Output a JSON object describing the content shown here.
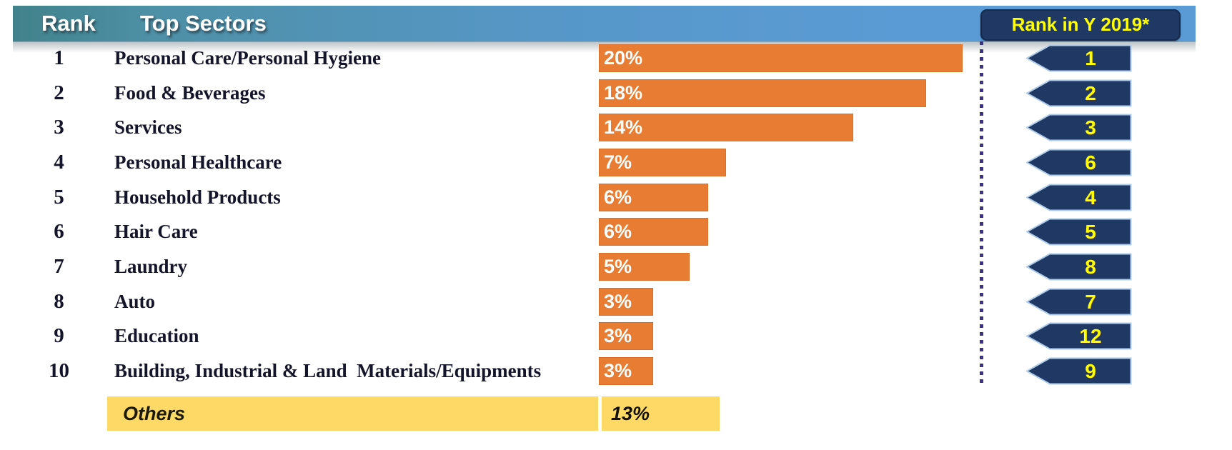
{
  "header": {
    "rank_label": "Rank",
    "title": "Top Sectors",
    "right_label": "Rank in Y 2019*"
  },
  "colors": {
    "bar_orange": "#E87C33",
    "badge_navy": "#1F3864",
    "badge_outline": "#AFCDEA",
    "badge_number_yellow": "#FFFF00",
    "others_yellow": "#FFD966",
    "header_gradient_left": "#41828B",
    "header_gradient_right": "#5B9BD5",
    "dotted_line": "#3D3383"
  },
  "rows": [
    {
      "rank": "1",
      "name": "Personal Care/Personal Hygiene",
      "pct": 20,
      "pct_label": "20%",
      "rank_2019": "1"
    },
    {
      "rank": "2",
      "name": "Food & Beverages",
      "pct": 18,
      "pct_label": "18%",
      "rank_2019": "2"
    },
    {
      "rank": "3",
      "name": "Services",
      "pct": 14,
      "pct_label": "14%",
      "rank_2019": "3"
    },
    {
      "rank": "4",
      "name": "Personal Healthcare",
      "pct": 7,
      "pct_label": "7%",
      "rank_2019": "6"
    },
    {
      "rank": "5",
      "name": "Household Products",
      "pct": 6,
      "pct_label": "6%",
      "rank_2019": "4"
    },
    {
      "rank": "6",
      "name": "Hair Care",
      "pct": 6,
      "pct_label": "6%",
      "rank_2019": "5"
    },
    {
      "rank": "7",
      "name": "Laundry",
      "pct": 5,
      "pct_label": "5%",
      "rank_2019": "8"
    },
    {
      "rank": "8",
      "name": "Auto",
      "pct": 3,
      "pct_label": "3%",
      "rank_2019": "7"
    },
    {
      "rank": "9",
      "name": "Education",
      "pct": 3,
      "pct_label": "3%",
      "rank_2019": "12"
    },
    {
      "rank": "10",
      "name": "Building, Industrial & Land  Materials/Equipments",
      "pct": 3,
      "pct_label": "3%",
      "rank_2019": "9"
    }
  ],
  "others_row": {
    "label": "Others",
    "pct": 13,
    "pct_label": "13%"
  },
  "chart_data": {
    "type": "bar",
    "orientation": "horizontal",
    "title": "Top Sectors",
    "unit": "percent share",
    "categories": [
      "Personal Care/Personal Hygiene",
      "Food & Beverages",
      "Services",
      "Personal Healthcare",
      "Household Products",
      "Hair Care",
      "Laundry",
      "Auto",
      "Education",
      "Building, Industrial & Land Materials/Equipments"
    ],
    "values": [
      20,
      18,
      14,
      7,
      6,
      6,
      5,
      3,
      3,
      3
    ],
    "series": [
      {
        "name": "Current rank",
        "values": [
          1,
          2,
          3,
          4,
          5,
          6,
          7,
          8,
          9,
          10
        ]
      },
      {
        "name": "Rank in Y 2019*",
        "values": [
          1,
          2,
          3,
          6,
          4,
          5,
          8,
          7,
          12,
          9
        ]
      }
    ],
    "others": {
      "label": "Others",
      "value": 13
    },
    "xlim": [
      0,
      20
    ],
    "data_labels": "inside-left, white",
    "grid": false,
    "legend_position": "none"
  }
}
